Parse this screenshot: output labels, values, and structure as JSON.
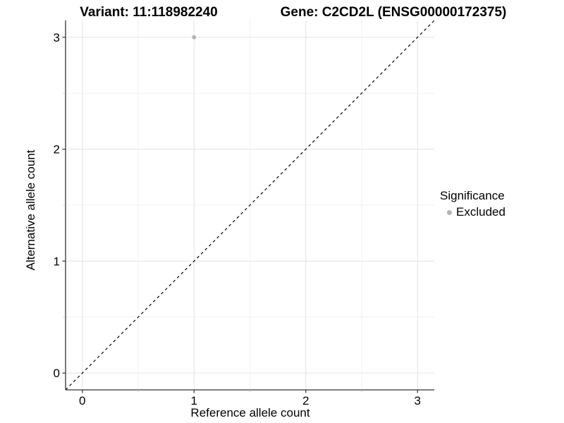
{
  "titles": {
    "variant": "Variant: 11:118982240",
    "gene": "Gene: C2CD2L (ENSG00000172375)"
  },
  "legend": {
    "title": "Significance",
    "items": [
      {
        "label": "Excluded",
        "color": "#b3b3b3"
      }
    ]
  },
  "chart_data": {
    "type": "scatter",
    "xlabel": "Reference allele count",
    "ylabel": "Alternative allele count",
    "xlim": [
      -0.15,
      3.15
    ],
    "ylim": [
      -0.15,
      3.15
    ],
    "xticks": [
      0,
      1,
      2,
      3
    ],
    "yticks": [
      0,
      1,
      2,
      3
    ],
    "x_minor_ticks": [
      0.5,
      1.5,
      2.5
    ],
    "y_minor_ticks": [
      0.5,
      1.5,
      2.5
    ],
    "grid": "major and minor, light gray on white",
    "legend_position": "right-middle",
    "series": [
      {
        "name": "Excluded",
        "color": "#b3b3b3",
        "points": [
          {
            "x": 1,
            "y": 3
          }
        ]
      }
    ],
    "reference_line": {
      "type": "identity",
      "slope": 1,
      "intercept": 0,
      "style": "dashed",
      "color": "#000000"
    }
  },
  "style": {
    "background": "#ffffff",
    "grid_major_color": "#e3e3e3",
    "grid_minor_color": "#f0f0f0",
    "axis_line_color": "#333333",
    "major_tick_color": "#333333",
    "minor_tick_color": "#bbbbbb",
    "text_color": "#000000",
    "point_radius": 3,
    "legend_dot_color": "#b3b3b3"
  }
}
